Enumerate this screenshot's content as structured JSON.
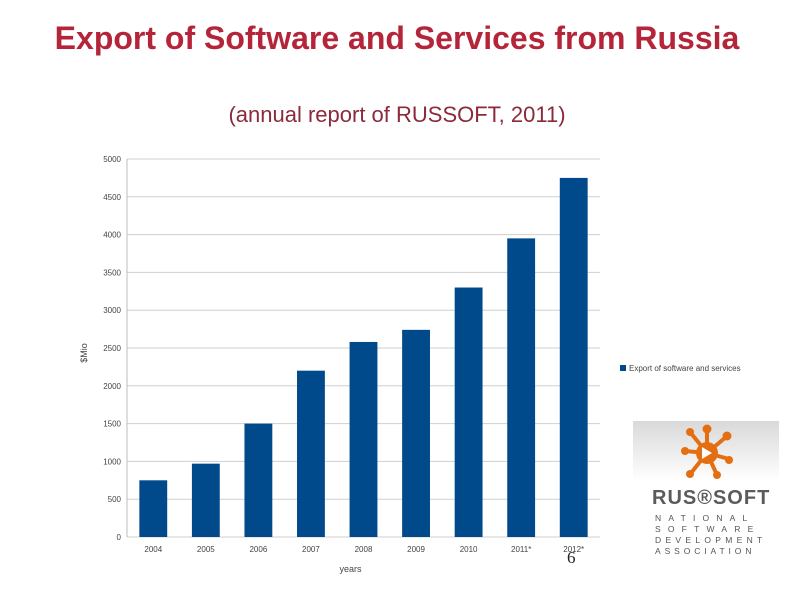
{
  "title": "Export of Software and Services from Russia",
  "subtitle": "(annual report of RUSSOFT, 2011)",
  "page_number": "6",
  "colors": {
    "title": "#b5253a",
    "subtitle": "#8a2a3a",
    "bar": "#004a8c",
    "grid": "#cfcfcf",
    "logo_accent": "#e36f12"
  },
  "logo": {
    "name": "RUS®SOFT",
    "lines": [
      "NATIONAL",
      "SOFTWARE",
      "DEVELOPMENT",
      "ASSOCIATION"
    ]
  },
  "chart_data": {
    "type": "bar",
    "categories": [
      "2004",
      "2005",
      "2006",
      "2007",
      "2008",
      "2009",
      "2010",
      "2011*",
      "2012*"
    ],
    "series": [
      {
        "name": "Export of software and services",
        "values": [
          750,
          970,
          1500,
          2200,
          2580,
          2740,
          3300,
          3950,
          4750
        ]
      }
    ],
    "xlabel": "years",
    "ylabel": "$Mio",
    "ylim": [
      0,
      5000
    ],
    "yticks": [
      0,
      500,
      1000,
      1500,
      2000,
      2500,
      3000,
      3500,
      4000,
      4500,
      5000
    ],
    "grid": true,
    "legend_position": "right"
  }
}
